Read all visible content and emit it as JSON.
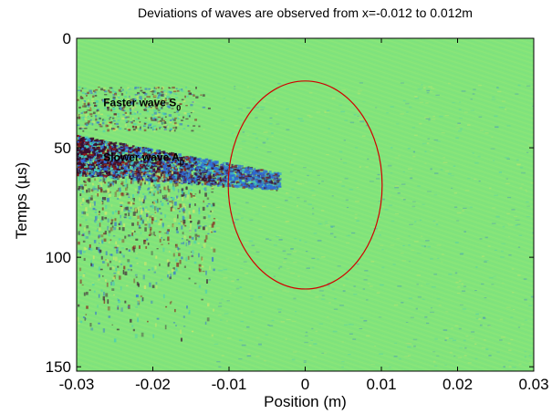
{
  "chart_data": {
    "type": "heatmap",
    "title": "Deviations of waves are observed from x=-0.012 to 0.012m",
    "xlabel": "Position  (m)",
    "ylabel": "Temps (µs)",
    "xlim": [
      -0.03,
      0.03
    ],
    "ylim": [
      0,
      152
    ],
    "y_reversed": true,
    "xticks": [
      -0.03,
      -0.02,
      -0.01,
      0,
      0.01,
      0.02,
      0.03
    ],
    "xtick_labels": [
      "-0.03",
      "-0.02",
      "-0.01",
      "0",
      "0.01",
      "0.02",
      "0.03"
    ],
    "yticks": [
      0,
      50,
      100,
      150
    ],
    "ytick_labels": [
      "0",
      "50",
      "100",
      "150"
    ],
    "grid": false,
    "colors": {
      "background": "#82e47a",
      "wave_dark": "#3a0d2e",
      "wave_red": "#8a1a1a",
      "wave_blue": "#2e6ad8",
      "wave_cyan": "#3fc9c0",
      "wave_yellow": "#d8e86a",
      "ellipse": "#d00000"
    },
    "annotations": [
      {
        "text": "Faster wave S",
        "subscript": "0",
        "x": -0.0265,
        "y": 31
      },
      {
        "text": "Slower wave A",
        "subscript": "0",
        "x": -0.0265,
        "y": 56
      }
    ],
    "ellipse": {
      "cx": 0,
      "cy": 67,
      "rx": 0.0101,
      "ry": 47.5,
      "color": "#d00000"
    },
    "wave_bands": [
      {
        "label": "A0 band",
        "x_start": -0.03,
        "x_end": -0.0035,
        "y_start_top": 44,
        "y_start_bottom": 62,
        "y_end_top": 61,
        "y_end_bottom": 69
      },
      {
        "label": "S0 band",
        "x_start": -0.03,
        "x_end": -0.012,
        "y_top": 22,
        "y_bottom": 42
      }
    ]
  }
}
